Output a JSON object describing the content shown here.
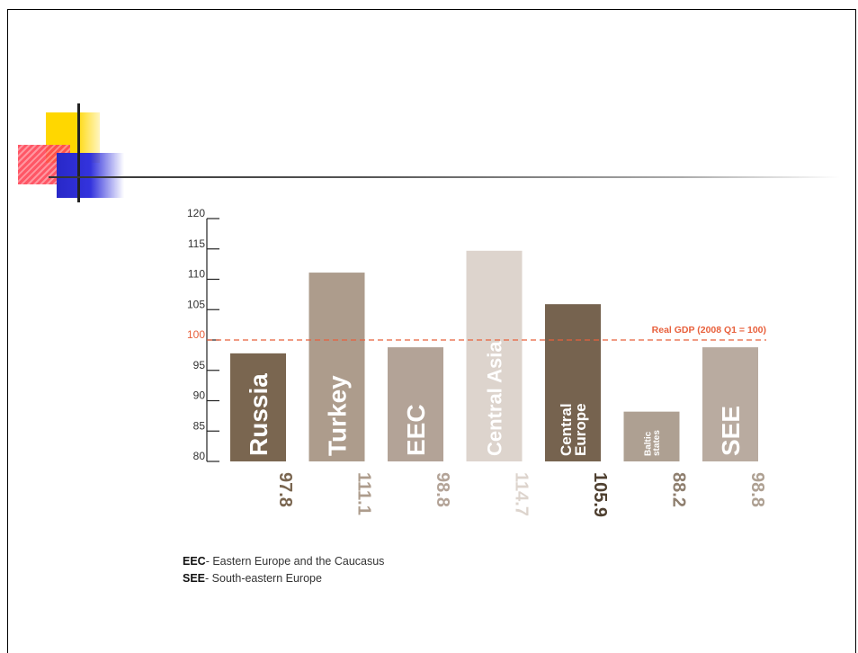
{
  "chart_data": {
    "type": "bar",
    "categories": [
      "Russia",
      "Turkey",
      "EEC",
      "Central Asia",
      "Central Europe",
      "Baltic states",
      "SEE"
    ],
    "category_label_lines": [
      [
        "Russia"
      ],
      [
        "Turkey"
      ],
      [
        "EEC"
      ],
      [
        "Central Asia"
      ],
      [
        "Central",
        "Europe"
      ],
      [
        "Baltic",
        "states"
      ],
      [
        "SEE"
      ]
    ],
    "values": [
      97.8,
      111.1,
      98.8,
      114.7,
      105.9,
      88.2,
      98.8
    ],
    "value_labels": [
      "97.8",
      "111.1",
      "98.8",
      "114.7",
      "105.9",
      "88.2",
      "98.8"
    ],
    "bar_colors": [
      "#7a6650",
      "#ad9c8c",
      "#b3a397",
      "#ddd4cd",
      "#76634f",
      "#aea092",
      "#b9aba0"
    ],
    "value_label_colors": [
      "#7a6650",
      "#ad9c8c",
      "#b3a397",
      "#ddd4cd",
      "#4f4030",
      "#8e7e6e",
      "#aea092"
    ],
    "yticks": [
      "80",
      "85",
      "90",
      "95",
      "100",
      "105",
      "110",
      "115",
      "120"
    ],
    "ylim": [
      80,
      120
    ],
    "reference_line": {
      "value": 100,
      "label": "Real GDP (2008 Q1 = 100)",
      "color": "#e8603c"
    },
    "tick_highlight_color": "#e8603c",
    "grid": false,
    "title": "",
    "xlabel": "",
    "ylabel": ""
  },
  "legend": [
    {
      "abbr": "EEC",
      "text": "- Eastern Europe and the Caucasus"
    },
    {
      "abbr": "SEE",
      "text": "- South-eastern Europe"
    }
  ]
}
